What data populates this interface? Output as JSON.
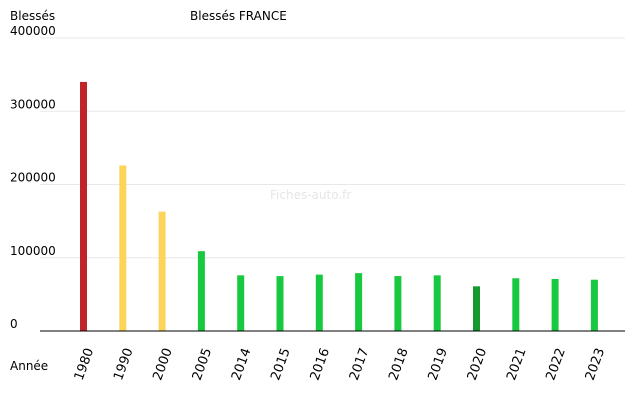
{
  "chart_data": {
    "type": "bar",
    "title": "Blessés FRANCE",
    "ylabel": "Blessés",
    "xlabel": "Année",
    "watermark": "Fiches-auto.fr",
    "ylim": [
      0,
      400000
    ],
    "yticks": [
      0,
      100000,
      200000,
      300000,
      400000
    ],
    "grid": true,
    "categories": [
      "1980",
      "1990",
      "2000",
      "2005",
      "2014",
      "2015",
      "2016",
      "2017",
      "2018",
      "2019",
      "2020",
      "2021",
      "2022",
      "2023"
    ],
    "values": [
      340000,
      226000,
      163000,
      109000,
      76000,
      75000,
      77000,
      79000,
      75000,
      76000,
      61000,
      72000,
      71000,
      70000
    ],
    "colors": [
      "#c0242a",
      "#fcd45a",
      "#fcd45a",
      "#18c940",
      "#18c940",
      "#18c940",
      "#18c940",
      "#18c940",
      "#18c940",
      "#18c940",
      "#149a2f",
      "#18c940",
      "#18c940",
      "#18c940"
    ]
  }
}
